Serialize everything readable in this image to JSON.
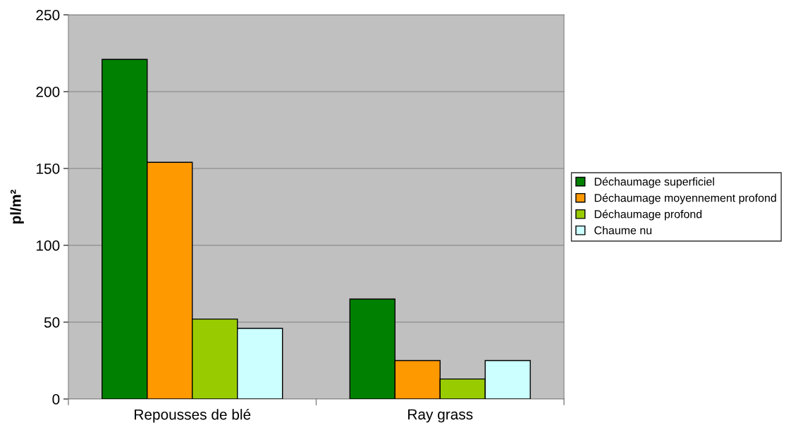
{
  "chart_data": {
    "type": "bar",
    "ylabel": "pl/m²",
    "categories": [
      "Repousses de blé",
      "Ray grass"
    ],
    "series": [
      {
        "name": "Déchaumage superficiel",
        "color": "#008000",
        "values": [
          221,
          65
        ]
      },
      {
        "name": "Déchaumage moyennement profond",
        "color": "#ff9900",
        "values": [
          154,
          25
        ]
      },
      {
        "name": "Déchaumage profond",
        "color": "#99cc00",
        "values": [
          52,
          13
        ]
      },
      {
        "name": "Chaume nu",
        "color": "#ccffff",
        "values": [
          46,
          25
        ]
      }
    ],
    "ylim": [
      0,
      250
    ],
    "yticks": [
      0,
      50,
      100,
      150,
      200,
      250
    ],
    "grid": "y",
    "legend": "right"
  }
}
